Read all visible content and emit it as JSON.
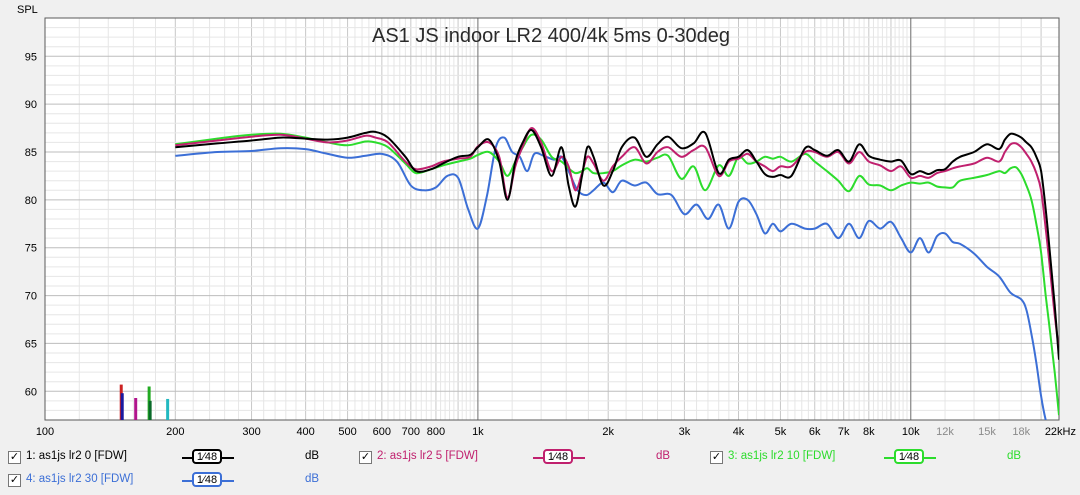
{
  "chart_data": {
    "type": "line",
    "title": "AS1 JS indoor LR2 400/4k 5ms 0-30deg",
    "ylabel": "SPL",
    "xlabel": "",
    "x_scale": "log",
    "xlim": [
      100,
      22000
    ],
    "ylim": [
      57,
      99
    ],
    "grid": true,
    "y_ticks": [
      "95",
      "90",
      "85",
      "80",
      "75",
      "70",
      "65",
      "60"
    ],
    "x_ticks": [
      "100",
      "200",
      "300",
      "400",
      "500",
      "600",
      "700",
      "800",
      "1k",
      "2k",
      "3k",
      "4k",
      "5k",
      "6k",
      "7k",
      "8k",
      "10k",
      "12k",
      "15k",
      "18k",
      "22kHz"
    ],
    "x_tick_values": [
      100,
      200,
      300,
      400,
      500,
      600,
      700,
      800,
      1000,
      2000,
      3000,
      4000,
      5000,
      6000,
      7000,
      8000,
      10000,
      12000,
      15000,
      18000,
      22000
    ],
    "x_tick_grey": [
      "12k",
      "15k",
      "18k"
    ],
    "bold_x": [
      100,
      1000,
      10000
    ],
    "markers": [
      {
        "freq": 150,
        "height": 60.7,
        "color": "#cc2222"
      },
      {
        "freq": 150,
        "height": 59.8,
        "color": "#1a1aa0"
      },
      {
        "freq": 162,
        "height": 59.3,
        "color": "#b0148c"
      },
      {
        "freq": 174,
        "height": 60.5,
        "color": "#22aa22"
      },
      {
        "freq": 174,
        "height": 59.0,
        "color": "#0a6a2a"
      },
      {
        "freq": 192,
        "height": 59.2,
        "color": "#22b8c0"
      }
    ],
    "series": [
      {
        "name": "1: as1js lr2 0 [FDW]",
        "color": "#000000",
        "x": [
          200,
          250,
          300,
          350,
          400,
          450,
          500,
          550,
          580,
          620,
          680,
          720,
          780,
          830,
          900,
          960,
          1000,
          1060,
          1120,
          1170,
          1220,
          1270,
          1330,
          1400,
          1480,
          1560,
          1620,
          1680,
          1740,
          1790,
          1850,
          1950,
          2050,
          2150,
          2300,
          2450,
          2600,
          2750,
          2950,
          3150,
          3350,
          3600,
          3800,
          4000,
          4200,
          4400,
          4600,
          4800,
          5000,
          5300,
          5700,
          6000,
          6400,
          6800,
          7200,
          7600,
          8000,
          8500,
          9000,
          9500,
          10000,
          10500,
          11000,
          11500,
          12000,
          12500,
          13000,
          14000,
          15000,
          16000,
          16500,
          17000,
          17500,
          18000,
          18500,
          19000,
          19500,
          20000,
          20500,
          21000,
          21500,
          22000
        ],
        "y": [
          85.5,
          85.9,
          86.2,
          86.5,
          86.4,
          86.3,
          86.5,
          87.0,
          87.1,
          86.5,
          84.5,
          83.0,
          83.2,
          83.8,
          84.5,
          84.7,
          85.5,
          86.3,
          84.0,
          80.0,
          84.0,
          86.0,
          87.3,
          85.5,
          82.5,
          85.5,
          81.5,
          79.3,
          82.5,
          85.5,
          84.5,
          81.5,
          83.0,
          85.5,
          86.5,
          84.5,
          85.8,
          86.6,
          85.4,
          85.9,
          87.0,
          82.8,
          84.2,
          84.5,
          85.2,
          84.0,
          82.7,
          82.4,
          82.6,
          82.5,
          85.4,
          85.2,
          84.6,
          85.2,
          84.0,
          85.8,
          84.6,
          84.2,
          84.0,
          84.1,
          82.7,
          83.0,
          82.7,
          83.1,
          83.2,
          84.0,
          84.5,
          85.0,
          85.8,
          85.3,
          86.3,
          86.9,
          86.8,
          86.5,
          86.0,
          85.5,
          84.5,
          83.0,
          79.0,
          74.0,
          69.0,
          63.3
        ]
      },
      {
        "name": "2: as1js lr2 5 [FDW]",
        "color": "#c0206e",
        "x": [
          200,
          250,
          300,
          350,
          400,
          450,
          500,
          550,
          580,
          620,
          680,
          720,
          780,
          830,
          900,
          960,
          1000,
          1060,
          1120,
          1170,
          1220,
          1270,
          1330,
          1400,
          1480,
          1560,
          1620,
          1680,
          1740,
          1790,
          1850,
          1950,
          2050,
          2150,
          2300,
          2450,
          2600,
          2750,
          2950,
          3150,
          3350,
          3600,
          3800,
          4000,
          4200,
          4400,
          4600,
          4800,
          5000,
          5300,
          5700,
          6000,
          6400,
          6800,
          7200,
          7600,
          8000,
          8500,
          9000,
          9500,
          10000,
          10500,
          11000,
          11500,
          12000,
          12500,
          13000,
          14000,
          15000,
          16000,
          16500,
          17000,
          17500,
          18000,
          18500,
          19000,
          19500,
          20000,
          20500,
          21000,
          21500,
          22000
        ],
        "y": [
          85.7,
          86.2,
          86.6,
          86.8,
          86.4,
          86.0,
          86.2,
          86.7,
          86.5,
          86.0,
          84.0,
          83.2,
          83.5,
          84.0,
          84.3,
          84.5,
          85.6,
          86.0,
          84.5,
          80.2,
          83.5,
          85.6,
          87.5,
          86.0,
          83.0,
          84.5,
          83.5,
          81.0,
          82.8,
          84.5,
          83.8,
          82.0,
          83.5,
          84.5,
          85.5,
          83.8,
          85.0,
          85.5,
          84.5,
          85.2,
          85.5,
          82.5,
          84.0,
          84.3,
          84.8,
          84.0,
          83.5,
          83.0,
          83.5,
          83.5,
          85.0,
          85.0,
          84.5,
          85.0,
          83.8,
          85.0,
          84.0,
          83.6,
          83.0,
          83.5,
          82.3,
          82.5,
          82.3,
          82.8,
          83.0,
          83.3,
          83.5,
          83.8,
          84.4,
          84.0,
          85.0,
          85.8,
          85.9,
          85.5,
          84.8,
          84.0,
          82.8,
          81.0,
          77.0,
          72.5,
          68.0,
          64.3
        ]
      },
      {
        "name": "3: as1js lr2 10 [FDW]",
        "color": "#2cdc2c",
        "x": [
          200,
          250,
          300,
          350,
          400,
          450,
          500,
          550,
          580,
          620,
          680,
          720,
          780,
          830,
          900,
          960,
          1000,
          1060,
          1120,
          1170,
          1220,
          1270,
          1330,
          1400,
          1480,
          1560,
          1620,
          1680,
          1740,
          1790,
          1850,
          1950,
          2050,
          2150,
          2300,
          2450,
          2600,
          2750,
          2950,
          3150,
          3350,
          3600,
          3800,
          4000,
          4200,
          4400,
          4600,
          4800,
          5000,
          5300,
          5700,
          6000,
          6400,
          6800,
          7200,
          7600,
          8000,
          8500,
          9000,
          9500,
          10000,
          10500,
          11000,
          11500,
          12000,
          12500,
          13000,
          14000,
          15000,
          16000,
          16500,
          17000,
          17500,
          18000,
          18500,
          19000,
          19500,
          20000,
          20500,
          21000,
          21500,
          22000
        ],
        "y": [
          85.8,
          86.4,
          86.8,
          86.9,
          86.5,
          86.0,
          85.7,
          86.1,
          86.0,
          85.5,
          83.8,
          82.8,
          83.2,
          83.6,
          84.0,
          84.3,
          84.7,
          85.0,
          84.0,
          82.5,
          84.0,
          85.5,
          86.8,
          86.3,
          84.5,
          84.0,
          83.3,
          82.8,
          83.0,
          83.3,
          82.8,
          82.8,
          83.0,
          83.6,
          84.2,
          84.0,
          84.4,
          84.6,
          82.2,
          83.5,
          81.0,
          83.6,
          82.5,
          84.5,
          83.8,
          84.0,
          84.5,
          84.3,
          84.5,
          84.0,
          84.8,
          84.0,
          83.0,
          82.0,
          80.9,
          82.5,
          81.6,
          81.5,
          81.0,
          81.5,
          81.8,
          81.7,
          81.8,
          81.4,
          81.3,
          81.3,
          82.0,
          82.3,
          82.6,
          83.0,
          82.8,
          83.3,
          83.4,
          82.7,
          81.5,
          80.0,
          77.5,
          74.5,
          70.0,
          66.0,
          62.0,
          57.5
        ]
      },
      {
        "name": "4: as1js lr2 30 [FDW]",
        "color": "#3c6fd6",
        "x": [
          200,
          250,
          300,
          350,
          400,
          450,
          500,
          550,
          600,
          650,
          700,
          750,
          800,
          850,
          900,
          950,
          1000,
          1050,
          1100,
          1150,
          1200,
          1250,
          1300,
          1350,
          1420,
          1500,
          1560,
          1620,
          1700,
          1780,
          1850,
          1950,
          2050,
          2150,
          2300,
          2450,
          2600,
          2800,
          3000,
          3200,
          3400,
          3600,
          3800,
          4000,
          4200,
          4400,
          4600,
          4800,
          5000,
          5300,
          5700,
          6000,
          6400,
          6800,
          7200,
          7600,
          8000,
          8500,
          9000,
          9500,
          10000,
          10500,
          11000,
          11500,
          12000,
          12500,
          13000,
          14000,
          15000,
          16000,
          17000,
          18000,
          18500,
          19000,
          19500,
          20000,
          20500,
          21000,
          21500
        ],
        "y": [
          84.6,
          85.0,
          85.1,
          85.4,
          85.3,
          84.8,
          84.4,
          84.6,
          84.8,
          84.0,
          81.5,
          81.0,
          81.3,
          82.5,
          82.3,
          79.0,
          77.0,
          80.5,
          85.5,
          86.5,
          85.0,
          84.5,
          83.0,
          84.8,
          84.6,
          84.2,
          84.5,
          83.0,
          81.0,
          80.5,
          81.0,
          81.8,
          80.8,
          82.0,
          81.5,
          81.8,
          80.6,
          80.5,
          78.5,
          79.5,
          78.0,
          79.5,
          77.0,
          79.8,
          80.0,
          78.5,
          76.5,
          77.5,
          76.7,
          77.5,
          77.0,
          77.0,
          77.5,
          76.0,
          77.5,
          76.0,
          77.8,
          77.0,
          77.7,
          76.0,
          74.5,
          76.0,
          74.5,
          76.2,
          76.5,
          75.6,
          75.4,
          74.4,
          73.0,
          72.0,
          70.3,
          69.6,
          68.5,
          66.0,
          63.0,
          59.5,
          57.0,
          55.5,
          55.0
        ]
      }
    ]
  },
  "legend": [
    {
      "label": "1: as1js lr2 0 [FDW]",
      "checked": "✓",
      "smoothing": "1⁄48",
      "unit": "dB",
      "color": "#000000"
    },
    {
      "label": "2: as1js lr2 5 [FDW]",
      "checked": "✓",
      "smoothing": "1⁄48",
      "unit": "dB",
      "color": "#c0206e"
    },
    {
      "label": "3: as1js lr2 10 [FDW]",
      "checked": "✓",
      "smoothing": "1⁄48",
      "unit": "dB",
      "color": "#2cdc2c"
    },
    {
      "label": "4: as1js lr2 30 [FDW]",
      "checked": "✓",
      "smoothing": "1⁄48",
      "unit": "dB",
      "color": "#3c6fd6"
    }
  ]
}
